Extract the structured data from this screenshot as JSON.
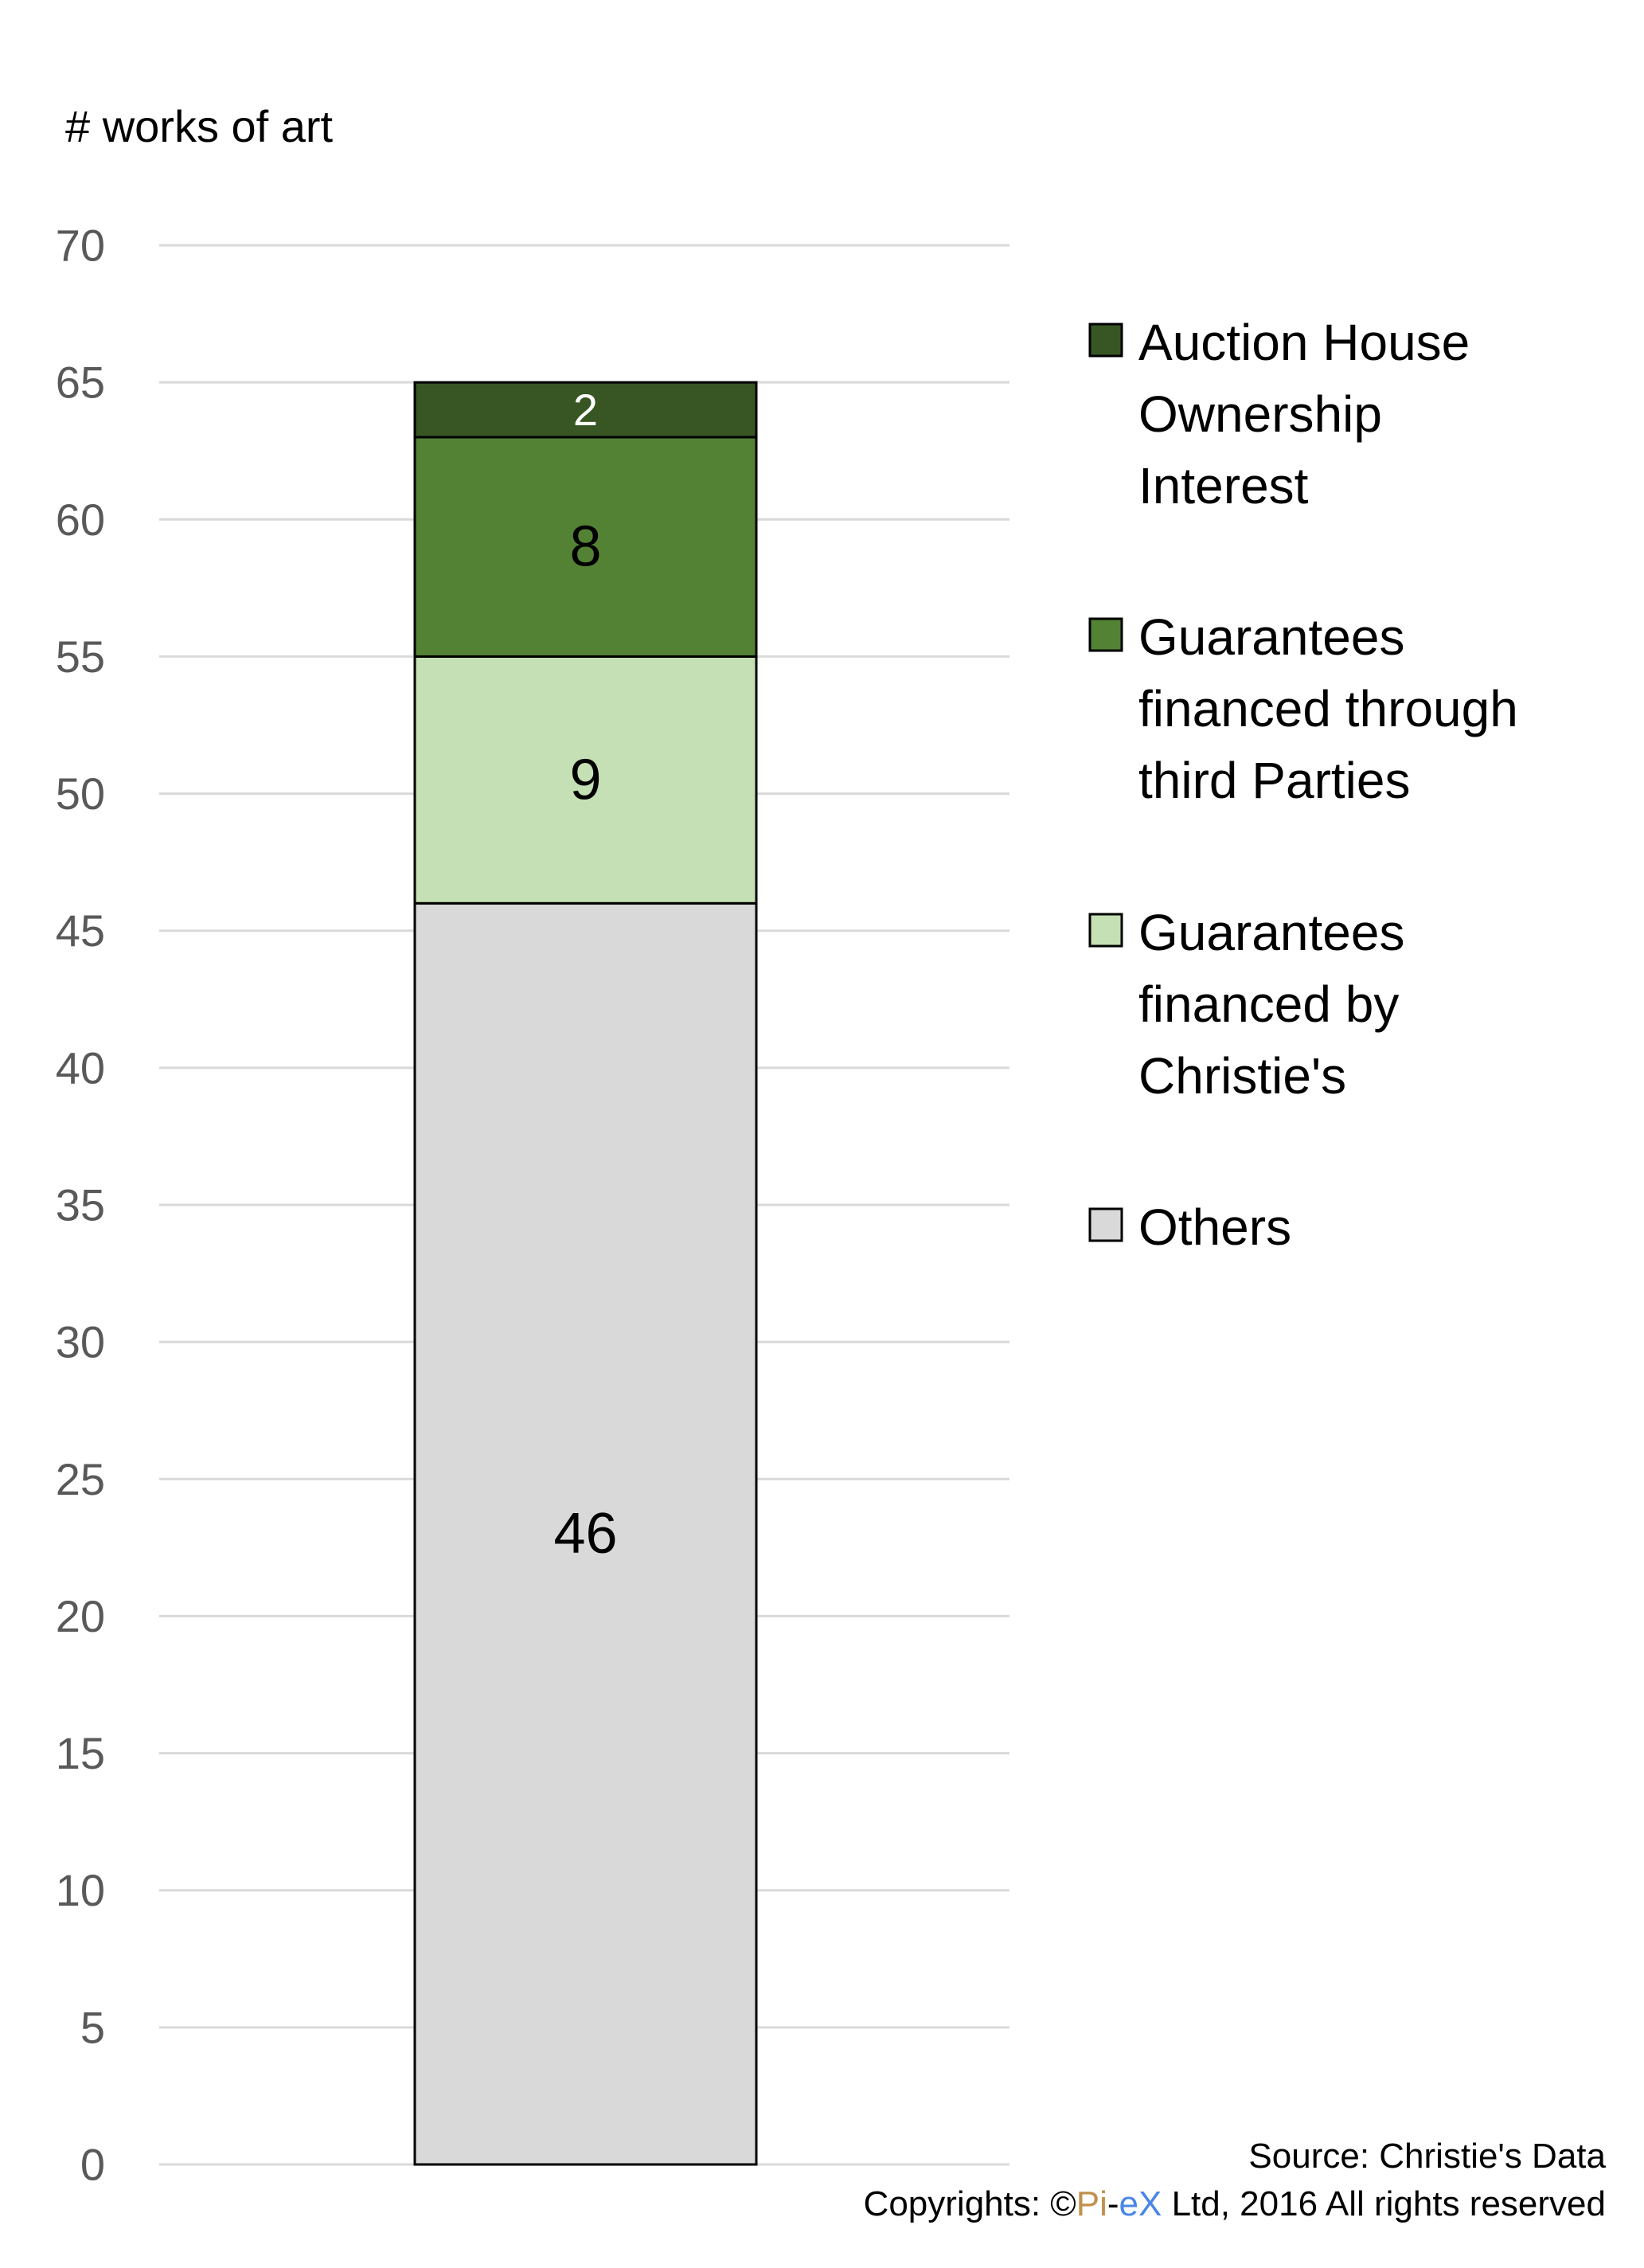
{
  "chart_data": {
    "type": "bar",
    "stacked": true,
    "ylabel": "# works of art",
    "ylim": [
      0,
      70
    ],
    "yticks": [
      0,
      5,
      10,
      15,
      20,
      25,
      30,
      35,
      40,
      45,
      50,
      55,
      60,
      65,
      70
    ],
    "grid": true,
    "legend_position": "right",
    "series": [
      {
        "name": "Others",
        "value": 46,
        "color": "#d9d9d9",
        "label_color": "#000000"
      },
      {
        "name": "Guarantees financed by Christie's",
        "value": 9,
        "color": "#c5e0b4",
        "label_color": "#000000"
      },
      {
        "name": "Guarantees financed through third Parties",
        "value": 8,
        "color": "#548235",
        "label_color": "#000000"
      },
      {
        "name": "Auction House Ownership Interest",
        "value": 2,
        "color": "#375623",
        "label_color": "#ffffff"
      }
    ]
  },
  "legend": [
    {
      "lines": [
        "Auction House",
        "Ownership",
        "Interest"
      ],
      "color": "#375623"
    },
    {
      "lines": [
        "Guarantees",
        "financed through",
        "third Parties"
      ],
      "color": "#548235"
    },
    {
      "lines": [
        "Guarantees",
        "financed by",
        "Christie's"
      ],
      "color": "#c5e0b4"
    },
    {
      "lines": [
        "Others"
      ],
      "color": "#d9d9d9"
    }
  ],
  "footer": {
    "source": "Source: Christie's Data",
    "copyright_prefix": "Copyrights: ©",
    "brand_pi": "Pi",
    "brand_dash": "-",
    "brand_ex": "eX",
    "copyright_suffix": " Ltd, 2016 All rights reserved",
    "brand_pi_color": "#c0914a",
    "brand_ex_color": "#4a86e8"
  }
}
